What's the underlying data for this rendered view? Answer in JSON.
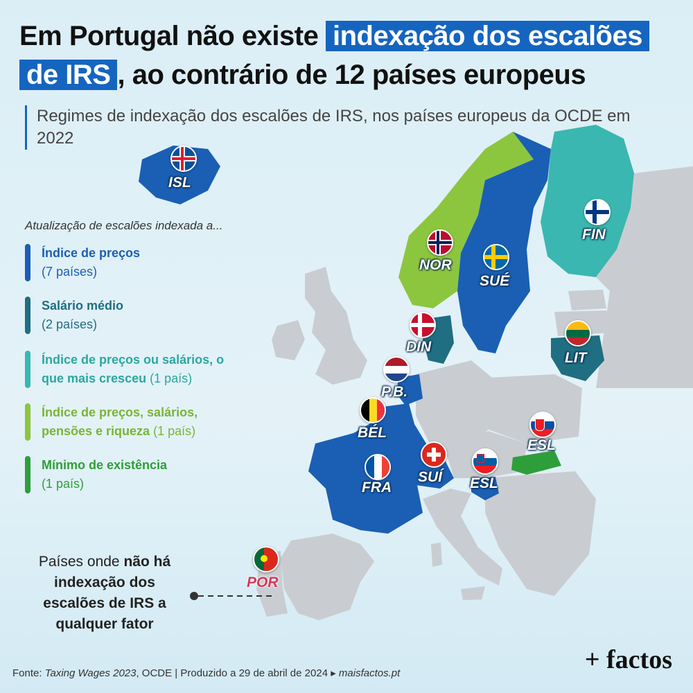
{
  "title": {
    "part1": "Em Portugal não existe ",
    "highlight1": "indexação dos escalões",
    "highlight2": "de IRS",
    "part2": ", ao contrário de 12 países europeus"
  },
  "subtitle": "Regimes de indexação dos escalões de IRS, nos países europeus da OCDE em 2022",
  "legend": {
    "title": "Atualização de escalões indexada a...",
    "items": [
      {
        "label": "Índice de preços",
        "count": "(7 países)",
        "color": "#1a5fb4"
      },
      {
        "label": "Salário médio",
        "count": "(2 países)",
        "color": "#1f6e82"
      },
      {
        "label": "Índice de preços ou salários, o que mais cresceu",
        "count": "(1 país)",
        "color": "#3ab7b0"
      },
      {
        "label": "Índice de preços, salários, pensões e riqueza",
        "count": "(1 país)",
        "color": "#8cc63f"
      },
      {
        "label": "Mínimo de existência",
        "count": "(1 país)",
        "color": "#2e9e3a"
      }
    ]
  },
  "countries": {
    "isl": "ISL",
    "fin": "FIN",
    "nor": "NOR",
    "sue": "SUÉ",
    "din": "DIN",
    "lit": "LIT",
    "pb": "P.B.",
    "bel": "BÉL",
    "svk": "ESL",
    "sui": "SUÍ",
    "svn": "ESL",
    "fra": "FRA",
    "por": "POR"
  },
  "note": {
    "line1a": "Países onde ",
    "line1b": "não há",
    "line2": "indexação dos",
    "line3": "escalões de IRS a",
    "line4": "qualquer fator"
  },
  "footer": {
    "a": "Fonte: ",
    "source": "Taxing Wages 2023",
    "b": ", OCDE | Produzido a 29 de abril de 2024 ▸ ",
    "site": "maisfactos.pt"
  },
  "brand": "+ factos",
  "colors": {
    "indice_precos": "#1a5fb4",
    "salario_medio": "#1f6e82",
    "precos_ou_salarios": "#3ab7b0",
    "precos_salarios_pensoes": "#8cc63f",
    "minimo_existencia": "#2e9e3a",
    "sem_indexacao": "#c9cdd1",
    "portugal_label": "#d6385a"
  }
}
